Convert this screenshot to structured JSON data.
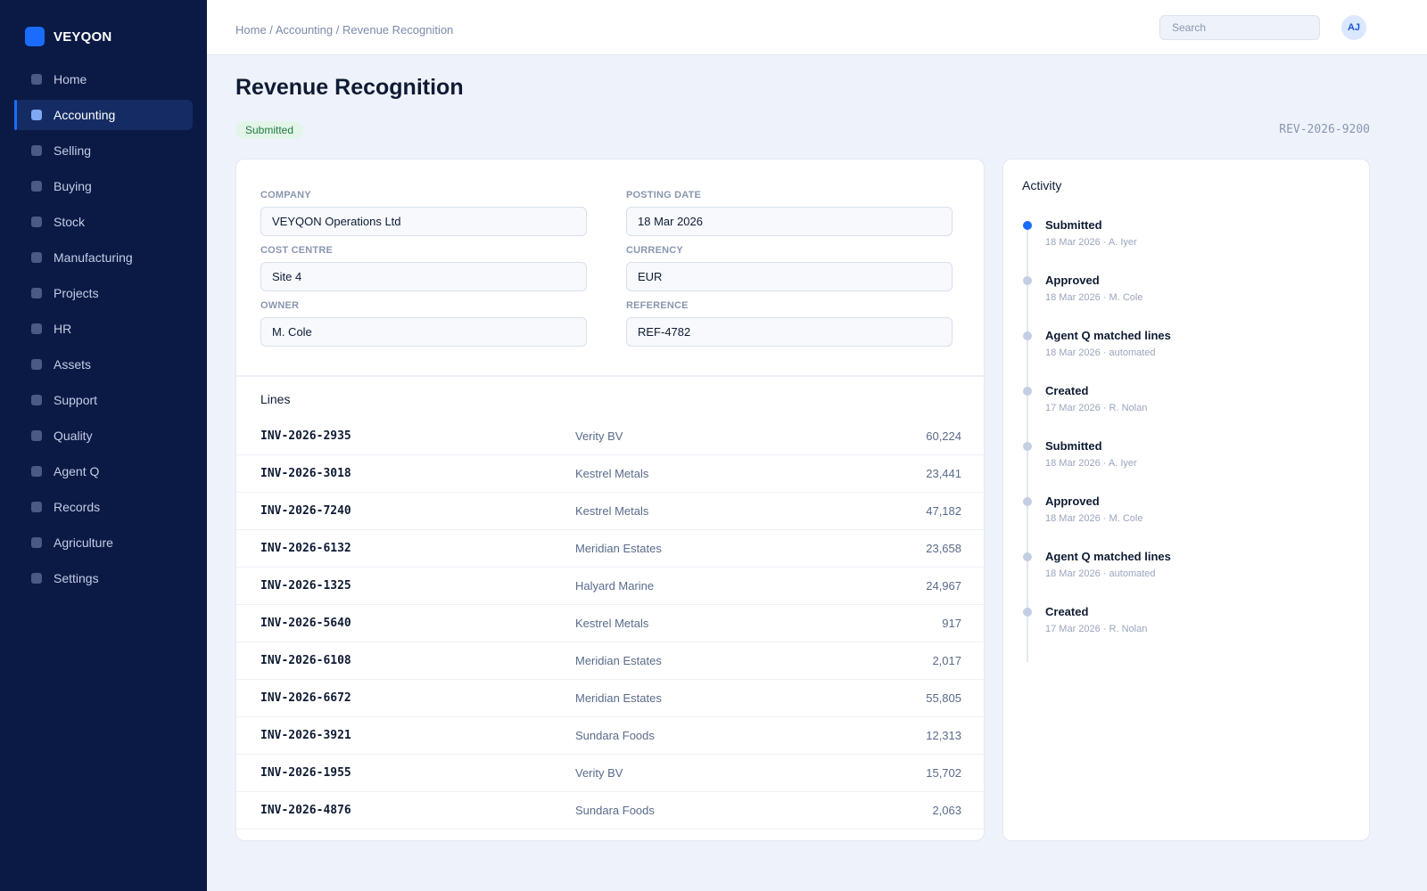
{
  "app": {
    "brand": "VEYQON"
  },
  "sidebar": {
    "items": [
      {
        "label": "Home"
      },
      {
        "label": "Accounting"
      },
      {
        "label": "Selling"
      },
      {
        "label": "Buying"
      },
      {
        "label": "Stock"
      },
      {
        "label": "Manufacturing"
      },
      {
        "label": "Projects"
      },
      {
        "label": "HR"
      },
      {
        "label": "Assets"
      },
      {
        "label": "Support"
      },
      {
        "label": "Quality"
      },
      {
        "label": "Agent Q"
      },
      {
        "label": "Records"
      },
      {
        "label": "Agriculture"
      },
      {
        "label": "Settings"
      }
    ],
    "active": "Accounting"
  },
  "topbar": {
    "breadcrumb": [
      "Home",
      "Accounting",
      "Revenue Recognition"
    ],
    "separator": " / ",
    "search_placeholder": "Search",
    "avatar_initials": "AJ"
  },
  "page": {
    "title": "Revenue Recognition",
    "status": "Submitted",
    "doc_id": "REV-2026-9200"
  },
  "form": {
    "company_label": "COMPANY",
    "company": "VEYQON Operations Ltd",
    "posting_date_label": "POSTING DATE",
    "posting_date": "18 Mar 2026",
    "cost_centre_label": "COST CENTRE",
    "cost_centre": "Site 4",
    "currency_label": "CURRENCY",
    "currency": "EUR",
    "owner_label": "OWNER",
    "owner": "M. Cole",
    "reference_label": "REFERENCE",
    "reference": "REF-4782"
  },
  "lines": {
    "title": "Lines",
    "rows": [
      {
        "invoice": "INV-2026-2935",
        "customer": "Verity BV",
        "amount": "60,224"
      },
      {
        "invoice": "INV-2026-3018",
        "customer": "Kestrel Metals",
        "amount": "23,441"
      },
      {
        "invoice": "INV-2026-7240",
        "customer": "Kestrel Metals",
        "amount": "47,182"
      },
      {
        "invoice": "INV-2026-6132",
        "customer": "Meridian Estates",
        "amount": "23,658"
      },
      {
        "invoice": "INV-2026-1325",
        "customer": "Halyard Marine",
        "amount": "24,967"
      },
      {
        "invoice": "INV-2026-5640",
        "customer": "Kestrel Metals",
        "amount": "917"
      },
      {
        "invoice": "INV-2026-6108",
        "customer": "Meridian Estates",
        "amount": "2,017"
      },
      {
        "invoice": "INV-2026-6672",
        "customer": "Meridian Estates",
        "amount": "55,805"
      },
      {
        "invoice": "INV-2026-3921",
        "customer": "Sundara Foods",
        "amount": "12,313"
      },
      {
        "invoice": "INV-2026-1955",
        "customer": "Verity BV",
        "amount": "15,702"
      },
      {
        "invoice": "INV-2026-4876",
        "customer": "Sundara Foods",
        "amount": "2,063"
      }
    ]
  },
  "activity": {
    "title": "Activity",
    "items": [
      {
        "title": "Submitted",
        "meta": "18 Mar 2026 · A. Iyer"
      },
      {
        "title": "Approved",
        "meta": "18 Mar 2026 · M. Cole"
      },
      {
        "title": "Agent Q matched lines",
        "meta": "18 Mar 2026 · automated"
      },
      {
        "title": "Created",
        "meta": "17 Mar 2026 · R. Nolan"
      },
      {
        "title": "Submitted",
        "meta": "18 Mar 2026 · A. Iyer"
      },
      {
        "title": "Approved",
        "meta": "18 Mar 2026 · M. Cole"
      },
      {
        "title": "Agent Q matched lines",
        "meta": "18 Mar 2026 · automated"
      },
      {
        "title": "Created",
        "meta": "17 Mar 2026 · R. Nolan"
      }
    ]
  },
  "colors": {
    "sidebar_bg": "#0b1a45",
    "accent": "#1a6cff",
    "status_success_bg": "#e3f5e9",
    "status_success_text": "#1e7a3e"
  },
  "icons": {
    "brand": "brand-logo-icon",
    "nav_item": "square-bullet-icon",
    "timeline": "timeline-dot-icon"
  }
}
